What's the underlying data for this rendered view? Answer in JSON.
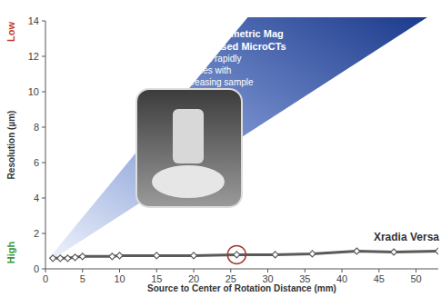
{
  "chart_data": {
    "type": "line",
    "x_label": "Source to Center of Rotation Distance (mm)",
    "y_label": "Resolution (µm)",
    "y_top_label": "Low",
    "y_bottom_label": "High",
    "annotations": [
      "Geometric Mag Based MicroCTs",
      "Resolution rapidly degrades with increasing sample size"
    ],
    "x": [
      1,
      2,
      3,
      4,
      5,
      9,
      10,
      15,
      20,
      25.8,
      31,
      36,
      42,
      47,
      53
    ],
    "series": [
      {
        "name": "Xradia Versa",
        "color": "#5a5a5a",
        "marker": "diamond",
        "values": [
          0.6,
          0.6,
          0.6,
          0.65,
          0.7,
          0.7,
          0.75,
          0.75,
          0.75,
          0.8,
          0.8,
          0.85,
          1.0,
          0.95,
          1.0
        ]
      }
    ],
    "xlim": [
      0,
      53
    ],
    "xticks": [
      0,
      5,
      10,
      15,
      20,
      25,
      30,
      35,
      40,
      45,
      50
    ],
    "ylim": [
      0,
      14
    ],
    "yticks": [
      0,
      2,
      4,
      6,
      8,
      10,
      12,
      14
    ],
    "grid": false
  }
}
